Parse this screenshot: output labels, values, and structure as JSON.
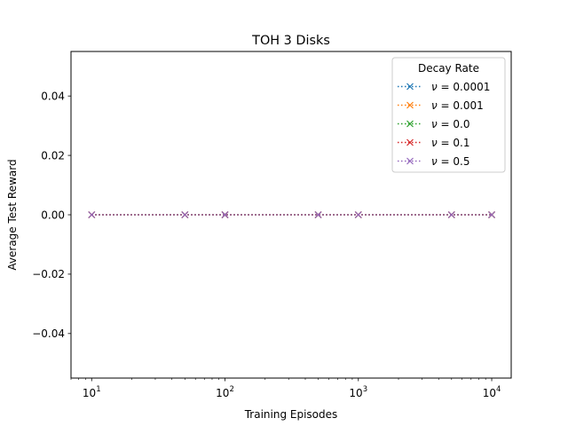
{
  "chart_data": {
    "type": "line",
    "title": "TOH 3 Disks",
    "xlabel": "Training Episodes",
    "ylabel": "Average Test Reward",
    "xscale": "log",
    "xlim": [
      7,
      14000
    ],
    "ylim": [
      -0.055,
      0.055
    ],
    "x": [
      10,
      50,
      100,
      500,
      1000,
      5000,
      10000
    ],
    "xticks": [
      {
        "value": 10,
        "base": "10",
        "exp": "1"
      },
      {
        "value": 100,
        "base": "10",
        "exp": "2"
      },
      {
        "value": 1000,
        "base": "10",
        "exp": "3"
      },
      {
        "value": 10000,
        "base": "10",
        "exp": "4"
      }
    ],
    "yticks": [
      {
        "value": 0.04,
        "label": "0.04"
      },
      {
        "value": 0.02,
        "label": "0.02"
      },
      {
        "value": 0.0,
        "label": "0.00"
      },
      {
        "value": -0.02,
        "label": "−0.02"
      },
      {
        "value": -0.04,
        "label": "−0.04"
      }
    ],
    "legend": {
      "title": "Decay Rate",
      "placement": "upper right",
      "entries": [
        {
          "symbol": "ν",
          "text": " = 0.0001"
        },
        {
          "symbol": "ν",
          "text": " = 0.001"
        },
        {
          "symbol": "ν",
          "text": " = 0.0"
        },
        {
          "symbol": "ν",
          "text": " = 0.1"
        },
        {
          "symbol": "ν",
          "text": " = 0.5"
        }
      ]
    },
    "series": [
      {
        "name": "ν = 0.0001",
        "color": "#1f77b4",
        "marker": "x",
        "linestyle": "dotted",
        "values": [
          0,
          0,
          0,
          0,
          0,
          0,
          0
        ]
      },
      {
        "name": "ν = 0.001",
        "color": "#ff7f0e",
        "marker": "x",
        "linestyle": "dotted",
        "values": [
          0,
          0,
          0,
          0,
          0,
          0,
          0
        ]
      },
      {
        "name": "ν = 0.0",
        "color": "#2ca02c",
        "marker": "x",
        "linestyle": "dotted",
        "values": [
          0,
          0,
          0,
          0,
          0,
          0,
          0
        ]
      },
      {
        "name": "ν = 0.1",
        "color": "#d62728",
        "marker": "x",
        "linestyle": "dotted",
        "values": [
          0,
          0,
          0,
          0,
          0,
          0,
          0
        ]
      },
      {
        "name": "ν = 0.5",
        "color": "#9467bd",
        "marker": "x",
        "linestyle": "dotted",
        "values": [
          0,
          0,
          0,
          0,
          0,
          0,
          0
        ]
      }
    ]
  }
}
